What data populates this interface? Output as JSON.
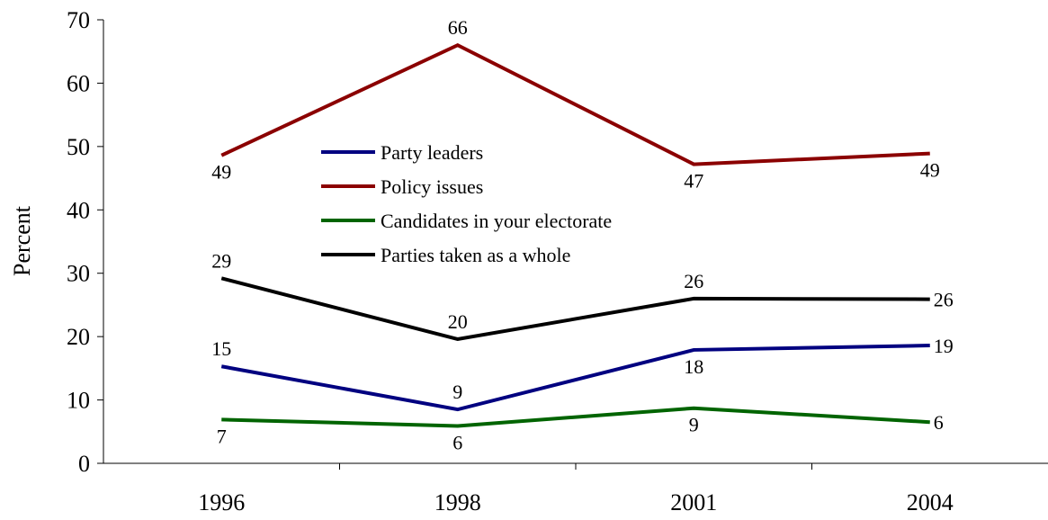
{
  "chart_data": {
    "type": "line",
    "title": "",
    "xlabel": "",
    "ylabel": "Percent",
    "ylim": [
      0,
      70
    ],
    "yticks": [
      0,
      10,
      20,
      30,
      40,
      50,
      60,
      70
    ],
    "categories": [
      "1996",
      "1998",
      "2001",
      "2004"
    ],
    "grid": false,
    "legend_position": "center",
    "series": [
      {
        "name": "Party leaders",
        "color": "#000080",
        "values": [
          15.3,
          8.5,
          17.9,
          18.6
        ],
        "labels": [
          "15",
          "9",
          "18",
          "19"
        ],
        "label_placement": [
          "above",
          "above",
          "below",
          "right"
        ]
      },
      {
        "name": "Policy issues",
        "color": "#8B0000",
        "values": [
          48.6,
          66,
          47.2,
          48.9
        ],
        "labels": [
          "49",
          "66",
          "47",
          "49"
        ],
        "label_placement": [
          "below",
          "above",
          "below",
          "below"
        ]
      },
      {
        "name": "Candidates in your electorate",
        "color": "#006400",
        "values": [
          6.9,
          5.9,
          8.7,
          6.5
        ],
        "labels": [
          "7",
          "6",
          "9",
          "6"
        ],
        "label_placement": [
          "below",
          "below",
          "below",
          "right"
        ]
      },
      {
        "name": "Parties taken as a whole",
        "color": "#000000",
        "values": [
          29.2,
          19.6,
          26,
          25.9
        ],
        "labels": [
          "29",
          "20",
          "26",
          "26"
        ],
        "label_placement": [
          "above",
          "above",
          "above",
          "right"
        ]
      }
    ]
  }
}
